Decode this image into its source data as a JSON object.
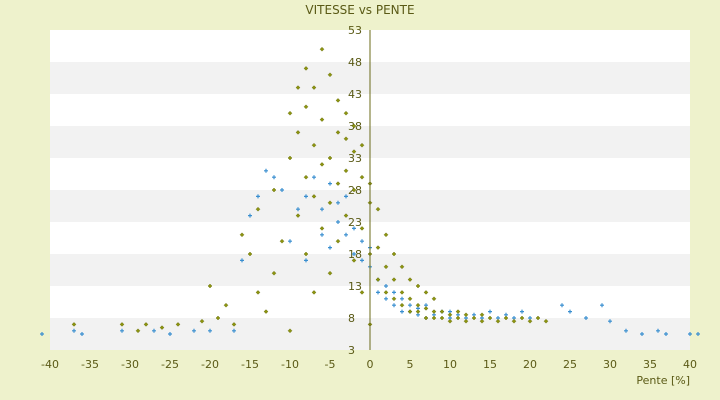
{
  "chart_data": {
    "type": "scatter",
    "title": "VITESSE vs PENTE",
    "xlabel": "Pente [%]",
    "ylabel": "",
    "xlim": [
      -40,
      40
    ],
    "ylim": [
      3,
      53
    ],
    "x_ticks": [
      -40,
      -35,
      -30,
      -25,
      -20,
      -15,
      -10,
      -5,
      0,
      5,
      10,
      15,
      20,
      25,
      30,
      35,
      40
    ],
    "y_ticks": [
      3,
      8,
      13,
      18,
      23,
      28,
      33,
      38,
      43,
      48,
      53
    ],
    "grid": "horizontal bands",
    "series": [
      {
        "color": "#3a8fd0",
        "marker": "cross",
        "points": [
          [
            -41,
            5.5
          ],
          [
            -37,
            6
          ],
          [
            -36,
            5.5
          ],
          [
            -31,
            6
          ],
          [
            -27,
            6
          ],
          [
            -25,
            5.5
          ],
          [
            -22,
            6
          ],
          [
            -20,
            6
          ],
          [
            -17,
            6
          ],
          [
            -16,
            17
          ],
          [
            -15,
            24
          ],
          [
            -14,
            27
          ],
          [
            -13,
            31
          ],
          [
            -12,
            30
          ],
          [
            -11,
            28
          ],
          [
            -10,
            20
          ],
          [
            -9,
            25
          ],
          [
            -8,
            27
          ],
          [
            -8,
            17
          ],
          [
            -7,
            30
          ],
          [
            -6,
            21
          ],
          [
            -6,
            25
          ],
          [
            -5,
            29
          ],
          [
            -5,
            19
          ],
          [
            -4,
            26
          ],
          [
            -4,
            23
          ],
          [
            -3,
            21
          ],
          [
            -3,
            27
          ],
          [
            -2,
            18
          ],
          [
            -2,
            22
          ],
          [
            -1,
            17
          ],
          [
            -1,
            20
          ],
          [
            0,
            16
          ],
          [
            0,
            19
          ],
          [
            1,
            14
          ],
          [
            1,
            12
          ],
          [
            2,
            13
          ],
          [
            2,
            11
          ],
          [
            3,
            10
          ],
          [
            3,
            12
          ],
          [
            4,
            9
          ],
          [
            4,
            11
          ],
          [
            5,
            9
          ],
          [
            5,
            10
          ],
          [
            6,
            8.5
          ],
          [
            6,
            9.5
          ],
          [
            7,
            8
          ],
          [
            7,
            10
          ],
          [
            8,
            8.5
          ],
          [
            9,
            9
          ],
          [
            10,
            8
          ],
          [
            10,
            9
          ],
          [
            11,
            8.5
          ],
          [
            12,
            8
          ],
          [
            13,
            8.5
          ],
          [
            14,
            8
          ],
          [
            15,
            9
          ],
          [
            16,
            8
          ],
          [
            17,
            8.5
          ],
          [
            18,
            8
          ],
          [
            19,
            9
          ],
          [
            20,
            8
          ],
          [
            24,
            10
          ],
          [
            25,
            9
          ],
          [
            27,
            8
          ],
          [
            29,
            10
          ],
          [
            30,
            7.5
          ],
          [
            32,
            6
          ],
          [
            34,
            5.5
          ],
          [
            36,
            6
          ],
          [
            37,
            5.5
          ],
          [
            40,
            5.5
          ],
          [
            41,
            5.5
          ]
        ]
      },
      {
        "color": "#8c9410",
        "marker": "diamond",
        "points": [
          [
            -37,
            7
          ],
          [
            -31,
            7
          ],
          [
            -29,
            6
          ],
          [
            -28,
            7
          ],
          [
            -26,
            6.5
          ],
          [
            -24,
            7
          ],
          [
            -21,
            7.5
          ],
          [
            -20,
            13
          ],
          [
            -19,
            8
          ],
          [
            -18,
            10
          ],
          [
            -17,
            7
          ],
          [
            -16,
            21
          ],
          [
            -15,
            18
          ],
          [
            -14,
            12
          ],
          [
            -14,
            25
          ],
          [
            -13,
            9
          ],
          [
            -12,
            15
          ],
          [
            -12,
            28
          ],
          [
            -11,
            20
          ],
          [
            -10,
            6
          ],
          [
            -10,
            33
          ],
          [
            -10,
            40
          ],
          [
            -9,
            24
          ],
          [
            -9,
            37
          ],
          [
            -9,
            44
          ],
          [
            -8,
            18
          ],
          [
            -8,
            30
          ],
          [
            -8,
            41
          ],
          [
            -8,
            47
          ],
          [
            -7,
            12
          ],
          [
            -7,
            27
          ],
          [
            -7,
            35
          ],
          [
            -7,
            44
          ],
          [
            -6,
            22
          ],
          [
            -6,
            32
          ],
          [
            -6,
            39
          ],
          [
            -6,
            50
          ],
          [
            -5,
            15
          ],
          [
            -5,
            26
          ],
          [
            -5,
            33
          ],
          [
            -5,
            46
          ],
          [
            -4,
            20
          ],
          [
            -4,
            29
          ],
          [
            -4,
            37
          ],
          [
            -4,
            42
          ],
          [
            -3,
            24
          ],
          [
            -3,
            31
          ],
          [
            -3,
            36
          ],
          [
            -3,
            40
          ],
          [
            -2,
            17
          ],
          [
            -2,
            28
          ],
          [
            -2,
            34
          ],
          [
            -2,
            38
          ],
          [
            -1,
            12
          ],
          [
            -1,
            22
          ],
          [
            -1,
            30
          ],
          [
            -1,
            35
          ],
          [
            0,
            7
          ],
          [
            0,
            18
          ],
          [
            0,
            26
          ],
          [
            0,
            29
          ],
          [
            1,
            14
          ],
          [
            1,
            19
          ],
          [
            1,
            25
          ],
          [
            2,
            12
          ],
          [
            2,
            16
          ],
          [
            2,
            21
          ],
          [
            3,
            11
          ],
          [
            3,
            14
          ],
          [
            3,
            18
          ],
          [
            4,
            10
          ],
          [
            4,
            12
          ],
          [
            4,
            16
          ],
          [
            5,
            9
          ],
          [
            5,
            11
          ],
          [
            5,
            14
          ],
          [
            6,
            9
          ],
          [
            6,
            10
          ],
          [
            6,
            13
          ],
          [
            7,
            8
          ],
          [
            7,
            9.5
          ],
          [
            7,
            12
          ],
          [
            8,
            8
          ],
          [
            8,
            9
          ],
          [
            8,
            11
          ],
          [
            9,
            8
          ],
          [
            9,
            9
          ],
          [
            10,
            7.5
          ],
          [
            10,
            8.5
          ],
          [
            11,
            8
          ],
          [
            11,
            9
          ],
          [
            12,
            7.5
          ],
          [
            12,
            8.5
          ],
          [
            13,
            8
          ],
          [
            14,
            7.5
          ],
          [
            14,
            8.5
          ],
          [
            15,
            8
          ],
          [
            16,
            7.5
          ],
          [
            17,
            8
          ],
          [
            18,
            7.5
          ],
          [
            19,
            8
          ],
          [
            20,
            7.5
          ],
          [
            21,
            8
          ],
          [
            22,
            7.5
          ]
        ]
      }
    ]
  }
}
